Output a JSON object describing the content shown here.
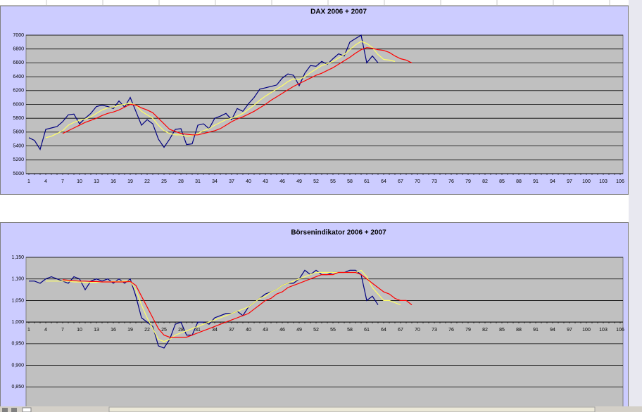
{
  "chart_data": [
    {
      "type": "line",
      "title": "DAX 2006 + 2007",
      "categories": [
        1,
        null,
        null,
        4,
        null,
        null,
        7,
        null,
        null,
        10,
        null,
        null,
        13,
        null,
        null,
        16,
        null,
        null,
        19,
        null,
        null,
        22,
        null,
        null,
        25,
        null,
        null,
        28,
        null,
        null,
        31,
        null,
        null,
        34,
        null,
        null,
        37,
        null,
        null,
        40,
        null,
        null,
        43,
        null,
        null,
        46,
        null,
        null,
        49,
        null,
        null,
        52,
        null,
        null,
        55,
        null,
        null,
        58,
        null,
        null,
        61,
        null,
        null,
        64,
        null,
        null,
        67,
        null,
        null,
        70,
        null,
        null,
        73,
        null,
        null,
        76,
        null,
        null,
        79,
        null,
        null,
        82,
        null,
        null,
        85,
        null,
        null,
        88,
        null,
        null,
        91,
        null,
        null,
        94,
        null,
        null,
        97,
        null,
        null,
        100,
        null,
        null,
        103,
        null,
        null,
        106
      ],
      "series": [
        {
          "color": "#000080",
          "values": [
            5520,
            5480,
            5350,
            5640,
            5660,
            5680,
            5750,
            5850,
            5860,
            5720,
            5800,
            5870,
            5970,
            5990,
            5970,
            5940,
            6050,
            5960,
            6100,
            5900,
            5700,
            5780,
            5720,
            5500,
            5380,
            5500,
            5640,
            5650,
            5420,
            5430,
            5700,
            5720,
            5650,
            5800,
            5830,
            5870,
            5780,
            5940,
            5900,
            6010,
            6100,
            6220,
            6240,
            6260,
            6280,
            6380,
            6440,
            6420,
            6270,
            6450,
            6560,
            6550,
            6620,
            6580,
            6660,
            6730,
            6700,
            6900,
            6950,
            7000,
            6600,
            6700,
            6600,
            null,
            null,
            null,
            null,
            null,
            null,
            null,
            null,
            null,
            null,
            null,
            null,
            null,
            null,
            null,
            null,
            null,
            null,
            null,
            null,
            null,
            null,
            null,
            null,
            null,
            null,
            null,
            null,
            null,
            null,
            null,
            null,
            null,
            null,
            null,
            null,
            null,
            null,
            null,
            null,
            null,
            null,
            null
          ]
        },
        {
          "color": "#ffff66",
          "values": [
            null,
            null,
            null,
            5520,
            5540,
            5580,
            5620,
            5700,
            5740,
            5770,
            5790,
            5820,
            5870,
            5920,
            5950,
            5960,
            5990,
            6000,
            6020,
            5990,
            5900,
            5850,
            5800,
            5700,
            5620,
            5580,
            5560,
            5560,
            5540,
            5550,
            5580,
            5620,
            5650,
            5700,
            5740,
            5780,
            5800,
            5830,
            5870,
            5930,
            5990,
            6060,
            6120,
            6170,
            6220,
            6270,
            6330,
            6370,
            6360,
            6400,
            6460,
            6510,
            6560,
            6590,
            6620,
            6670,
            6720,
            6790,
            6860,
            6910,
            6880,
            6820,
            6720,
            6650,
            6640,
            6620,
            null,
            null,
            null,
            null,
            null,
            null,
            null,
            null,
            null,
            null,
            null,
            null,
            null,
            null,
            null,
            null,
            null,
            null,
            null,
            null,
            null,
            null,
            null,
            null,
            null,
            null,
            null,
            null,
            null,
            null,
            null,
            null,
            null,
            null,
            null,
            null,
            null,
            null,
            null,
            null
          ]
        },
        {
          "color": "#ff0000",
          "values": [
            null,
            null,
            null,
            null,
            null,
            null,
            5580,
            5620,
            5660,
            5700,
            5740,
            5770,
            5800,
            5840,
            5870,
            5890,
            5920,
            5960,
            6000,
            5990,
            5950,
            5920,
            5880,
            5800,
            5720,
            5640,
            5610,
            5580,
            5570,
            5560,
            5560,
            5580,
            5600,
            5620,
            5650,
            5700,
            5750,
            5790,
            5820,
            5860,
            5900,
            5950,
            6000,
            6060,
            6110,
            6160,
            6210,
            6260,
            6300,
            6340,
            6380,
            6420,
            6450,
            6490,
            6530,
            6580,
            6630,
            6680,
            6740,
            6790,
            6820,
            6810,
            6790,
            6780,
            6750,
            6700,
            6660,
            6640,
            6600,
            null,
            null,
            null,
            null,
            null,
            null,
            null,
            null,
            null,
            null,
            null,
            null,
            null,
            null,
            null,
            null,
            null,
            null,
            null,
            null,
            null,
            null,
            null,
            null,
            null,
            null,
            null,
            null,
            null,
            null,
            null,
            null,
            null,
            null,
            null,
            null,
            null
          ]
        }
      ],
      "ylim": [
        5000,
        7000
      ],
      "yticks": [
        5000,
        5200,
        5400,
        5600,
        5800,
        6000,
        6200,
        6400,
        6600,
        6800,
        7000
      ],
      "x_axis_crosses": 5000,
      "grid": true
    },
    {
      "type": "line",
      "title": "Börsenindikator 2006 + 2007",
      "categories": [
        1,
        null,
        null,
        4,
        null,
        null,
        7,
        null,
        null,
        10,
        null,
        null,
        13,
        null,
        null,
        16,
        null,
        null,
        19,
        null,
        null,
        22,
        null,
        null,
        25,
        null,
        null,
        28,
        null,
        null,
        31,
        null,
        null,
        34,
        null,
        null,
        37,
        null,
        null,
        40,
        null,
        null,
        43,
        null,
        null,
        46,
        null,
        null,
        49,
        null,
        null,
        52,
        null,
        null,
        55,
        null,
        null,
        58,
        null,
        null,
        61,
        null,
        null,
        64,
        null,
        null,
        67,
        null,
        null,
        70,
        null,
        null,
        73,
        null,
        null,
        76,
        null,
        null,
        79,
        null,
        null,
        82,
        null,
        null,
        85,
        null,
        null,
        88,
        null,
        null,
        91,
        null,
        null,
        94,
        null,
        null,
        97,
        null,
        null,
        100,
        null,
        null,
        103,
        null,
        null,
        106
      ],
      "series": [
        {
          "color": "#000080",
          "values": [
            1.095,
            1.095,
            1.09,
            1.1,
            1.105,
            1.1,
            1.095,
            1.09,
            1.105,
            1.1,
            1.075,
            1.095,
            1.1,
            1.095,
            1.1,
            1.09,
            1.1,
            1.09,
            1.1,
            1.06,
            1.01,
            1,
            0.99,
            0.945,
            0.94,
            0.96,
            0.995,
            1,
            0.97,
            0.97,
            1,
            1,
            0.995,
            1.01,
            1.015,
            1.02,
            1.02,
            1.025,
            1.015,
            1.035,
            1.045,
            1.055,
            1.065,
            1.07,
            1.075,
            1.085,
            1.09,
            1.09,
            1.1,
            1.12,
            1.11,
            1.12,
            1.11,
            1.11,
            1.115,
            1.115,
            1.115,
            1.12,
            1.12,
            1.11,
            1.05,
            1.06,
            1.04,
            null,
            null,
            null,
            null,
            null,
            null,
            null,
            null,
            null,
            null,
            null,
            null,
            null,
            null,
            null,
            null,
            null,
            null,
            null,
            null,
            null,
            null,
            null,
            null,
            null,
            null,
            null,
            null,
            null,
            null,
            null,
            null,
            null,
            null,
            null,
            null,
            null,
            null,
            null,
            null,
            null,
            null,
            null
          ]
        },
        {
          "color": "#ffff66",
          "values": [
            null,
            null,
            null,
            1.095,
            1.095,
            1.095,
            1.095,
            1.095,
            1.093,
            1.093,
            1.092,
            1.092,
            1.092,
            1.093,
            1.093,
            1.094,
            1.094,
            1.095,
            1.095,
            1.075,
            1.04,
            1.01,
            0.985,
            0.96,
            0.955,
            0.96,
            0.97,
            0.975,
            0.98,
            0.985,
            0.99,
            0.995,
            1,
            1.005,
            1.01,
            1.015,
            1.02,
            1.025,
            1.03,
            1.035,
            1.045,
            1.055,
            1.06,
            1.07,
            1.075,
            1.085,
            1.09,
            1.095,
            1.1,
            1.105,
            1.11,
            1.115,
            1.115,
            1.115,
            1.115,
            1.115,
            1.115,
            1.115,
            1.115,
            1.12,
            1.105,
            1.08,
            1.065,
            1.05,
            1.05,
            1.045,
            1.04,
            null,
            null,
            null,
            null,
            null,
            null,
            null,
            null,
            null,
            null,
            null,
            null,
            null,
            null,
            null,
            null,
            null,
            null,
            null,
            null,
            null,
            null,
            null,
            null,
            null,
            null,
            null,
            null,
            null,
            null,
            null,
            null,
            null,
            null,
            null,
            null,
            null,
            null,
            null
          ]
        },
        {
          "color": "#ff0000",
          "values": [
            null,
            null,
            null,
            null,
            null,
            null,
            1.098,
            1.097,
            1.096,
            1.095,
            1.095,
            1.094,
            1.094,
            1.093,
            1.093,
            1.093,
            1.093,
            1.093,
            1.094,
            1.085,
            1.06,
            1.035,
            1.01,
            0.985,
            0.97,
            0.965,
            0.965,
            0.965,
            0.965,
            0.97,
            0.975,
            0.98,
            0.985,
            0.99,
            0.995,
            1,
            1.005,
            1.01,
            1.015,
            1.02,
            1.03,
            1.04,
            1.05,
            1.055,
            1.065,
            1.07,
            1.08,
            1.085,
            1.09,
            1.095,
            1.1,
            1.105,
            1.11,
            1.11,
            1.11,
            1.115,
            1.115,
            1.115,
            1.115,
            1.11,
            1.1,
            1.09,
            1.08,
            1.07,
            1.065,
            1.055,
            1.05,
            1.05,
            1.04,
            null,
            null,
            null,
            null,
            null,
            null,
            null,
            null,
            null,
            null,
            null,
            null,
            null,
            null,
            null,
            null,
            null,
            null,
            null,
            null,
            null,
            null,
            null,
            null,
            null,
            null,
            null,
            null,
            null,
            null,
            null,
            null,
            null,
            null,
            null,
            null,
            null
          ]
        }
      ],
      "ylim": [
        0.8,
        1.15
      ],
      "yticks": [
        {
          "value": 0.85,
          "label": "0,850"
        },
        {
          "value": 0.9,
          "label": "0,900"
        },
        {
          "value": 0.95,
          "label": "0,950"
        },
        {
          "value": 1,
          "label": "1,000"
        },
        {
          "value": 1.05,
          "label": "1,050"
        },
        {
          "value": 1.1,
          "label": "1,100"
        },
        {
          "value": 1.15,
          "label": "1,150"
        }
      ],
      "x_axis_crosses": 1,
      "grid": true
    }
  ]
}
